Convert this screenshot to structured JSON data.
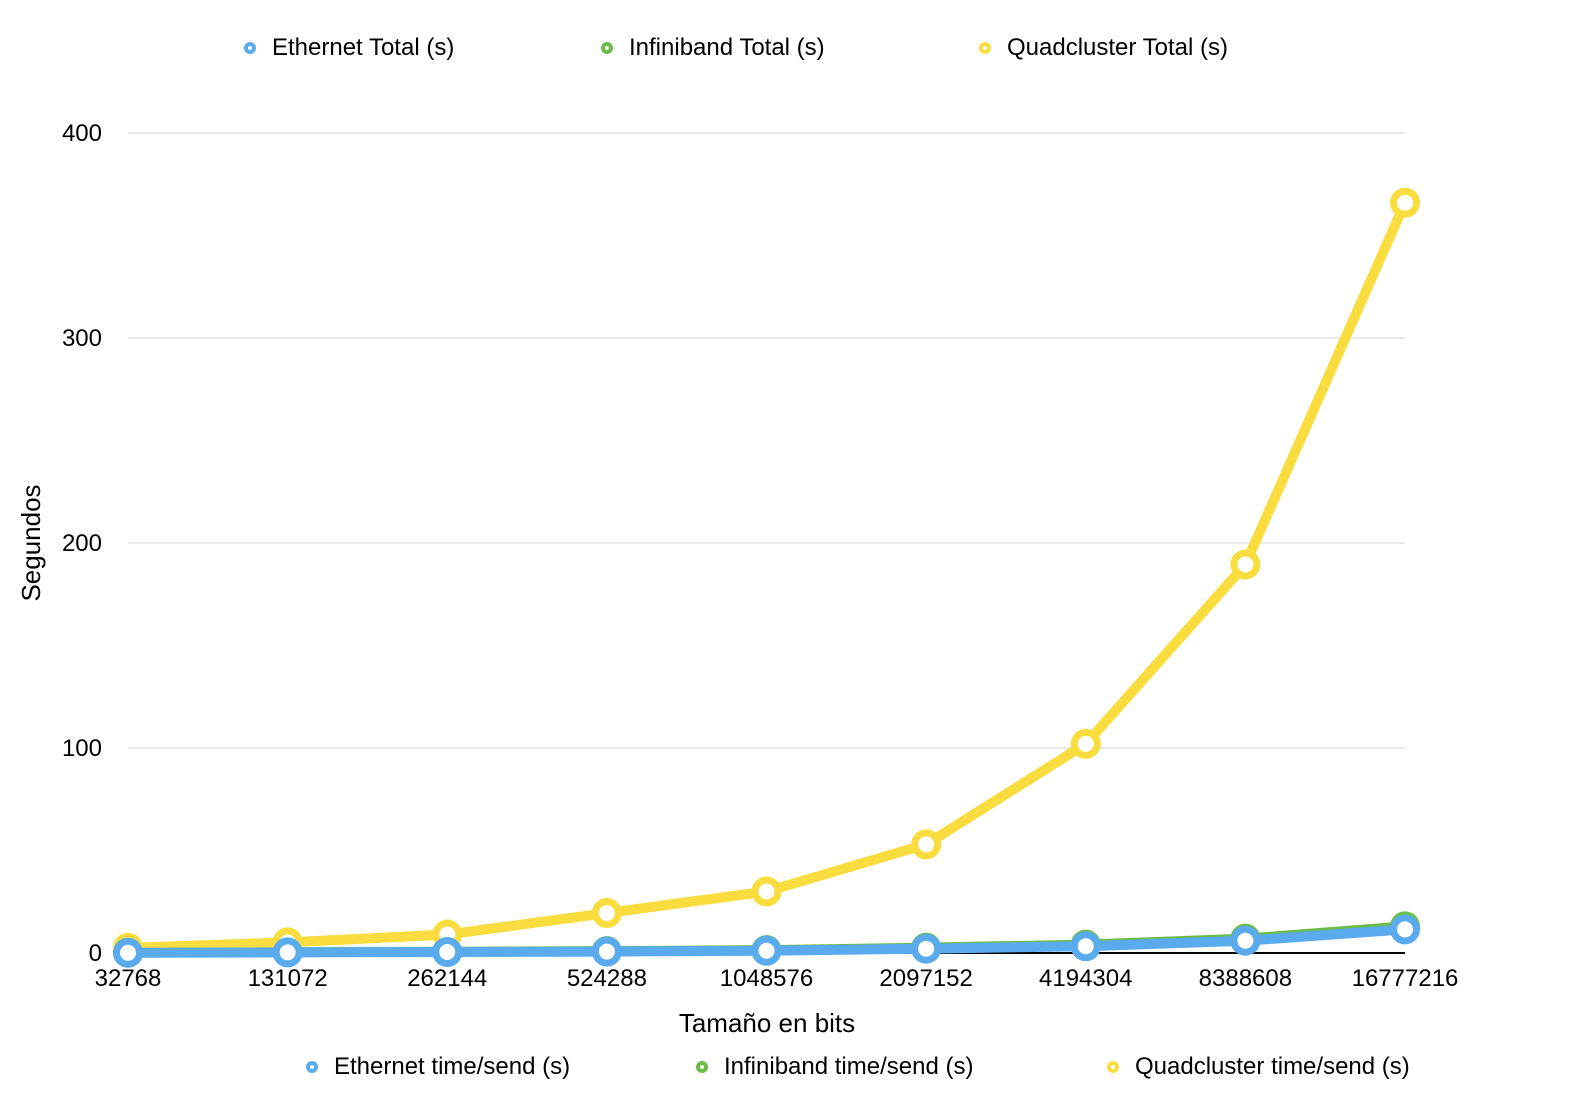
{
  "chart_data": {
    "type": "line",
    "xlabel": "Tamaño en bits",
    "ylabel": "Segundos",
    "categories": [
      "32768",
      "131072",
      "262144",
      "524288",
      "1048576",
      "2097152",
      "4194304",
      "8388608",
      "16777216"
    ],
    "ylim": [
      0,
      400
    ],
    "yticks": [
      "0",
      "100",
      "200",
      "300",
      "400"
    ],
    "grid": true,
    "legend_top": [
      "Ethernet Total (s)",
      "Infiniband Total (s)",
      "Quadcluster Total (s)"
    ],
    "legend_bottom": [
      "Ethernet time/send (s)",
      "Infiniband time/send (s)",
      "Quadcluster time/send (s)"
    ],
    "series": [
      {
        "name": "Infiniband Total (s)",
        "color": "#6ABE45",
        "values": [
          0.2,
          0.4,
          0.6,
          0.9,
          1.4,
          2.6,
          4.1,
          7.0,
          13.0
        ]
      },
      {
        "name": "Quadcluster Total (s)",
        "color": "#F9DC3E",
        "values": [
          2.5,
          5.2,
          9.0,
          19.5,
          30.0,
          53.0,
          102.0,
          189.5,
          366.0
        ]
      },
      {
        "name": "Ethernet Total (s)",
        "color": "#5AAAEE",
        "values": [
          0.1,
          0.3,
          0.5,
          0.7,
          1.1,
          2.1,
          3.3,
          6.0,
          11.5
        ]
      }
    ]
  }
}
